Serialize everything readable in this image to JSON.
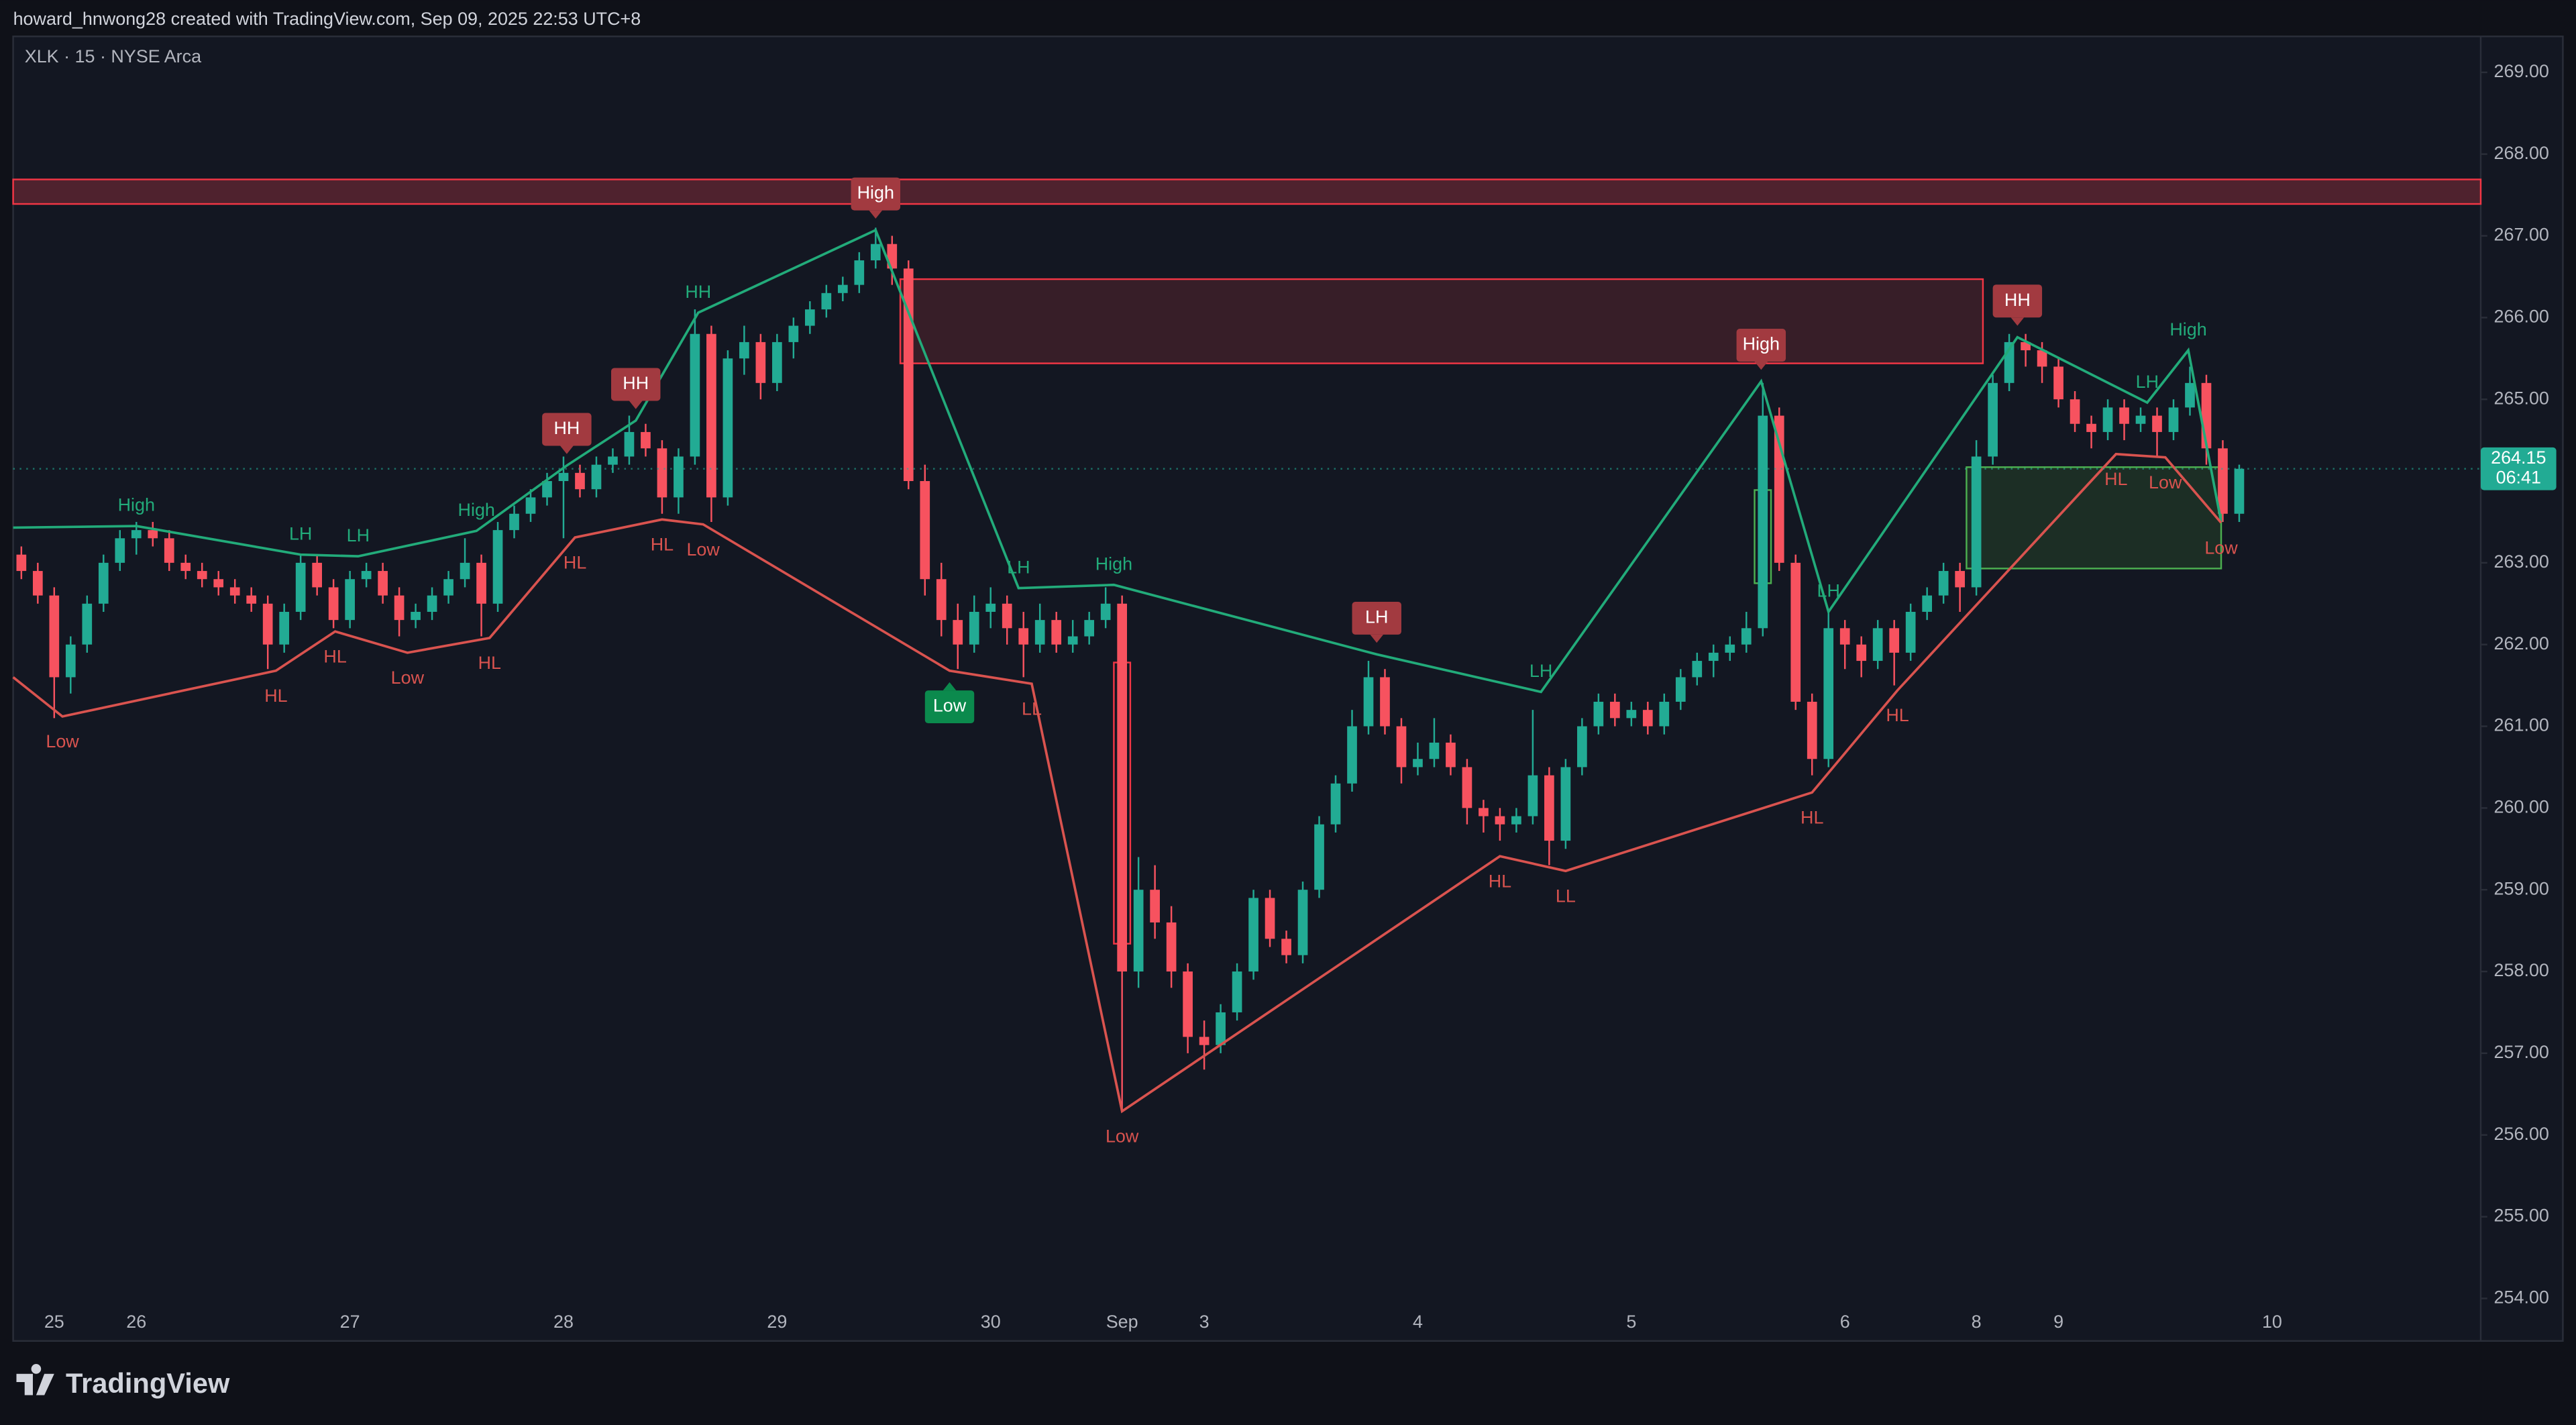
{
  "header": {
    "credit": "howard_hnwong28 created with TradingView.com, Sep 09, 2025 22:53 UTC+8"
  },
  "footer": {
    "brand": "TradingView"
  },
  "chart_data": {
    "type": "candlestick",
    "title": "XLK · 15 · NYSE Arca",
    "up_color": "#22ab94",
    "down_color": "#f7525f",
    "ylim": [
      253.5,
      269.44
    ],
    "yticks": [
      {
        "value": 254,
        "label": "254.00"
      },
      {
        "value": 255,
        "label": "255.00"
      },
      {
        "value": 256,
        "label": "256.00"
      },
      {
        "value": 257,
        "label": "257.00"
      },
      {
        "value": 258,
        "label": "258.00"
      },
      {
        "value": 259,
        "label": "259.00"
      },
      {
        "value": 260,
        "label": "260.00"
      },
      {
        "value": 261,
        "label": "261.00"
      },
      {
        "value": 262,
        "label": "262.00"
      },
      {
        "value": 263,
        "label": "263.00"
      },
      {
        "value": 264,
        "label": "264.00"
      },
      {
        "value": 265,
        "label": "265.00"
      },
      {
        "value": 266,
        "label": "266.00"
      },
      {
        "value": 267,
        "label": "267.00"
      },
      {
        "value": 268,
        "label": "268.00"
      },
      {
        "value": 269,
        "label": "269.00"
      }
    ],
    "grid": false,
    "last_price": 264.15,
    "countdown": "06:41",
    "categories": [
      null,
      null,
      "25",
      null,
      null,
      null,
      null,
      "26",
      null,
      null,
      null,
      null,
      null,
      null,
      null,
      null,
      null,
      null,
      null,
      null,
      "27",
      null,
      null,
      null,
      null,
      null,
      null,
      null,
      null,
      null,
      null,
      null,
      null,
      "28",
      null,
      null,
      null,
      null,
      null,
      null,
      null,
      null,
      null,
      null,
      null,
      null,
      "29",
      null,
      null,
      null,
      null,
      null,
      null,
      null,
      null,
      null,
      null,
      null,
      null,
      "30",
      null,
      null,
      null,
      null,
      null,
      null,
      null,
      "Sep",
      null,
      null,
      null,
      null,
      "3",
      null,
      null,
      null,
      null,
      null,
      null,
      null,
      null,
      null,
      null,
      null,
      null,
      "4",
      null,
      null,
      null,
      null,
      null,
      null,
      null,
      null,
      null,
      null,
      null,
      null,
      "5",
      null,
      null,
      null,
      null,
      null,
      null,
      null,
      null,
      null,
      null,
      null,
      null,
      "6",
      null,
      null,
      null,
      null,
      null,
      null,
      null,
      "8",
      null,
      null,
      null,
      null,
      "9",
      null,
      null,
      null,
      null,
      null,
      null,
      null,
      null,
      null,
      null,
      null,
      null,
      "10"
    ],
    "ohlc": [
      [
        263.1,
        263.2,
        262.8,
        262.9
      ],
      [
        262.9,
        263.0,
        262.5,
        262.6
      ],
      [
        262.6,
        262.7,
        261.1,
        261.6
      ],
      [
        261.6,
        262.1,
        261.4,
        262.0
      ],
      [
        262.0,
        262.6,
        261.9,
        262.5
      ],
      [
        262.5,
        263.1,
        262.4,
        263.0
      ],
      [
        263.0,
        263.4,
        262.9,
        263.3
      ],
      [
        263.3,
        263.5,
        263.1,
        263.4
      ],
      [
        263.4,
        263.5,
        263.2,
        263.3
      ],
      [
        263.3,
        263.4,
        262.9,
        263.0
      ],
      [
        263.0,
        263.1,
        262.8,
        262.9
      ],
      [
        262.9,
        263.0,
        262.7,
        262.8
      ],
      [
        262.8,
        262.9,
        262.6,
        262.7
      ],
      [
        262.7,
        262.8,
        262.5,
        262.6
      ],
      [
        262.6,
        262.7,
        262.4,
        262.5
      ],
      [
        262.5,
        262.6,
        261.7,
        262.0
      ],
      [
        262.0,
        262.5,
        261.9,
        262.4
      ],
      [
        262.4,
        263.1,
        262.3,
        263.0
      ],
      [
        263.0,
        263.1,
        262.6,
        262.7
      ],
      [
        262.7,
        262.8,
        262.2,
        262.3
      ],
      [
        262.3,
        262.9,
        262.2,
        262.8
      ],
      [
        262.8,
        263.0,
        262.7,
        262.9
      ],
      [
        262.9,
        263.0,
        262.5,
        262.6
      ],
      [
        262.6,
        262.7,
        262.1,
        262.3
      ],
      [
        262.3,
        262.5,
        262.2,
        262.4
      ],
      [
        262.4,
        262.7,
        262.3,
        262.6
      ],
      [
        262.6,
        262.9,
        262.5,
        262.8
      ],
      [
        262.8,
        263.3,
        262.7,
        263.0
      ],
      [
        263.0,
        263.1,
        262.1,
        262.5
      ],
      [
        262.5,
        263.5,
        262.4,
        263.4
      ],
      [
        263.4,
        263.7,
        263.3,
        263.6
      ],
      [
        263.6,
        263.9,
        263.5,
        263.8
      ],
      [
        263.8,
        264.1,
        263.7,
        264.0
      ],
      [
        264.0,
        264.3,
        263.3,
        264.1
      ],
      [
        264.1,
        264.2,
        263.8,
        263.9
      ],
      [
        263.9,
        264.3,
        263.8,
        264.2
      ],
      [
        264.2,
        264.4,
        264.1,
        264.3
      ],
      [
        264.3,
        264.8,
        264.2,
        264.6
      ],
      [
        264.6,
        264.7,
        264.3,
        264.4
      ],
      [
        264.4,
        264.5,
        263.6,
        263.8
      ],
      [
        263.8,
        264.4,
        263.6,
        264.3
      ],
      [
        264.3,
        266.1,
        264.2,
        265.8
      ],
      [
        265.8,
        265.9,
        263.5,
        263.8
      ],
      [
        263.8,
        265.6,
        263.7,
        265.5
      ],
      [
        265.5,
        265.9,
        265.3,
        265.7
      ],
      [
        265.7,
        265.8,
        265.0,
        265.2
      ],
      [
        265.2,
        265.8,
        265.1,
        265.7
      ],
      [
        265.7,
        266.0,
        265.5,
        265.9
      ],
      [
        265.9,
        266.2,
        265.8,
        266.1
      ],
      [
        266.1,
        266.4,
        266.0,
        266.3
      ],
      [
        266.3,
        266.5,
        266.2,
        266.4
      ],
      [
        266.4,
        266.8,
        266.3,
        266.7
      ],
      [
        266.7,
        267.1,
        266.6,
        266.9
      ],
      [
        266.9,
        267.0,
        266.4,
        266.6
      ],
      [
        266.6,
        266.7,
        263.9,
        264.0
      ],
      [
        264.0,
        264.2,
        262.6,
        262.8
      ],
      [
        262.8,
        263.0,
        262.1,
        262.3
      ],
      [
        262.3,
        262.5,
        261.7,
        262.0
      ],
      [
        262.0,
        262.6,
        261.9,
        262.4
      ],
      [
        262.4,
        262.7,
        262.2,
        262.5
      ],
      [
        262.5,
        262.6,
        262.0,
        262.2
      ],
      [
        262.2,
        262.4,
        261.6,
        262.0
      ],
      [
        262.0,
        262.5,
        261.9,
        262.3
      ],
      [
        262.3,
        262.4,
        261.9,
        262.0
      ],
      [
        262.0,
        262.3,
        261.9,
        262.1
      ],
      [
        262.1,
        262.4,
        262.0,
        262.3
      ],
      [
        262.3,
        262.7,
        262.2,
        262.5
      ],
      [
        262.5,
        262.6,
        256.3,
        258.0
      ],
      [
        258.0,
        259.4,
        257.8,
        259.0
      ],
      [
        259.0,
        259.3,
        258.4,
        258.6
      ],
      [
        258.6,
        258.8,
        257.8,
        258.0
      ],
      [
        258.0,
        258.1,
        257.0,
        257.2
      ],
      [
        257.2,
        257.4,
        256.8,
        257.1
      ],
      [
        257.1,
        257.6,
        257.0,
        257.5
      ],
      [
        257.5,
        258.1,
        257.4,
        258.0
      ],
      [
        258.0,
        259.0,
        257.9,
        258.9
      ],
      [
        258.9,
        259.0,
        258.3,
        258.4
      ],
      [
        258.4,
        258.5,
        258.1,
        258.2
      ],
      [
        258.2,
        259.1,
        258.1,
        259.0
      ],
      [
        259.0,
        259.9,
        258.9,
        259.8
      ],
      [
        259.8,
        260.4,
        259.7,
        260.3
      ],
      [
        260.3,
        261.2,
        260.2,
        261.0
      ],
      [
        261.0,
        261.8,
        260.9,
        261.6
      ],
      [
        261.6,
        261.7,
        260.9,
        261.0
      ],
      [
        261.0,
        261.1,
        260.3,
        260.5
      ],
      [
        260.5,
        260.8,
        260.4,
        260.6
      ],
      [
        260.6,
        261.1,
        260.5,
        260.8
      ],
      [
        260.8,
        260.9,
        260.4,
        260.5
      ],
      [
        260.5,
        260.6,
        259.8,
        260.0
      ],
      [
        260.0,
        260.1,
        259.7,
        259.9
      ],
      [
        259.9,
        260.0,
        259.6,
        259.8
      ],
      [
        259.8,
        260.0,
        259.7,
        259.9
      ],
      [
        259.9,
        261.2,
        259.8,
        260.4
      ],
      [
        260.4,
        260.5,
        259.3,
        259.6
      ],
      [
        259.6,
        260.6,
        259.5,
        260.5
      ],
      [
        260.5,
        261.1,
        260.4,
        261.0
      ],
      [
        261.0,
        261.4,
        260.9,
        261.3
      ],
      [
        261.3,
        261.4,
        261.0,
        261.1
      ],
      [
        261.1,
        261.3,
        261.0,
        261.2
      ],
      [
        261.2,
        261.3,
        260.9,
        261.0
      ],
      [
        261.0,
        261.4,
        260.9,
        261.3
      ],
      [
        261.3,
        261.7,
        261.2,
        261.6
      ],
      [
        261.6,
        261.9,
        261.5,
        261.8
      ],
      [
        261.8,
        262.0,
        261.6,
        261.9
      ],
      [
        261.9,
        262.1,
        261.8,
        262.0
      ],
      [
        262.0,
        262.4,
        261.9,
        262.2
      ],
      [
        262.2,
        265.2,
        262.1,
        264.8
      ],
      [
        264.8,
        264.9,
        262.9,
        263.0
      ],
      [
        263.0,
        263.1,
        261.2,
        261.3
      ],
      [
        261.3,
        261.4,
        260.4,
        260.6
      ],
      [
        260.6,
        262.4,
        260.5,
        262.2
      ],
      [
        262.2,
        262.3,
        261.7,
        262.0
      ],
      [
        262.0,
        262.1,
        261.6,
        261.8
      ],
      [
        261.8,
        262.3,
        261.7,
        262.2
      ],
      [
        262.2,
        262.3,
        261.5,
        261.9
      ],
      [
        261.9,
        262.5,
        261.8,
        262.4
      ],
      [
        262.4,
        262.7,
        262.3,
        262.6
      ],
      [
        262.6,
        263.0,
        262.5,
        262.9
      ],
      [
        262.9,
        263.0,
        262.4,
        262.7
      ],
      [
        262.7,
        264.5,
        262.6,
        264.3
      ],
      [
        264.3,
        265.3,
        264.2,
        265.2
      ],
      [
        265.2,
        265.8,
        265.1,
        265.7
      ],
      [
        265.7,
        265.8,
        265.4,
        265.6
      ],
      [
        265.6,
        265.7,
        265.2,
        265.4
      ],
      [
        265.4,
        265.5,
        264.9,
        265.0
      ],
      [
        265.0,
        265.1,
        264.6,
        264.7
      ],
      [
        264.7,
        264.8,
        264.4,
        264.6
      ],
      [
        264.6,
        265.0,
        264.5,
        264.9
      ],
      [
        264.9,
        265.0,
        264.5,
        264.7
      ],
      [
        264.7,
        264.9,
        264.6,
        264.8
      ],
      [
        264.8,
        264.9,
        264.3,
        264.6
      ],
      [
        264.6,
        265.0,
        264.5,
        264.9
      ],
      [
        264.9,
        265.4,
        264.8,
        265.2
      ],
      [
        265.2,
        265.3,
        264.2,
        264.4
      ],
      [
        264.4,
        264.5,
        263.5,
        263.6
      ],
      [
        263.6,
        264.2,
        263.5,
        264.15
      ],
      null,
      null
    ],
    "zones": [
      {
        "start": -0.5,
        "extend_right": true,
        "top": 267.69,
        "bottom": 267.39,
        "color": "#f23645",
        "fill": "#5a2430"
      },
      {
        "start": 53.5,
        "end": 119.4,
        "top": 266.47,
        "bottom": 265.44,
        "color": "#f23645",
        "fill": "#3e2029"
      },
      {
        "start": 118.4,
        "end": 133.9,
        "top": 264.17,
        "bottom": 262.93,
        "color": "#4caf50",
        "fill": "#1f3326"
      },
      {
        "start": 66.5,
        "end": 67.5,
        "top": 261.78,
        "bottom": 258.34,
        "color": "#f23645"
      },
      {
        "start": 105.5,
        "end": 106.5,
        "top": 263.89,
        "bottom": 262.75,
        "color": "#4caf50"
      }
    ],
    "zigzag": {
      "green": {
        "color": "#22ab7a",
        "points": [
          {
            "x": -0.5,
            "y": 263.43
          },
          {
            "x": 7,
            "y": 263.45,
            "label": "High"
          },
          {
            "x": 17,
            "y": 263.1,
            "label": "LH"
          },
          {
            "x": 20.5,
            "y": 263.08,
            "label": "LH"
          },
          {
            "x": 27.7,
            "y": 263.39,
            "label": "High"
          },
          {
            "x": 33.2,
            "y": 264.19,
            "label": "HH",
            "box": "#a23a40"
          },
          {
            "x": 37.4,
            "y": 264.74,
            "label": "HH",
            "box": "#a23a40"
          },
          {
            "x": 41.2,
            "y": 266.06,
            "label": "HH"
          },
          {
            "x": 52,
            "y": 267.07,
            "label": "High",
            "box": "#a23a40"
          },
          {
            "x": 60.7,
            "y": 262.69,
            "label": "LH"
          },
          {
            "x": 66.5,
            "y": 262.73,
            "label": "High"
          },
          {
            "x": 82.5,
            "y": 261.88,
            "label": "LH",
            "box": "#a23a40"
          },
          {
            "x": 92.5,
            "y": 261.42,
            "label": "LH"
          },
          {
            "x": 105.9,
            "y": 265.22,
            "label": "High",
            "box": "#a23a40"
          },
          {
            "x": 110,
            "y": 262.4,
            "label": "LH"
          },
          {
            "x": 121.5,
            "y": 265.76,
            "label": "HH",
            "box": "#a23a40"
          },
          {
            "x": 129.4,
            "y": 264.96,
            "label": "LH"
          },
          {
            "x": 131.9,
            "y": 265.6,
            "label": "High"
          },
          {
            "x": 133.9,
            "y": 263.5
          }
        ]
      },
      "red": {
        "color": "#d9534f",
        "points": [
          {
            "x": -0.5,
            "y": 261.6
          },
          {
            "x": 2.5,
            "y": 261.12,
            "label": "Low"
          },
          {
            "x": 15.5,
            "y": 261.68,
            "label": "HL"
          },
          {
            "x": 19.1,
            "y": 262.16,
            "label": "HL"
          },
          {
            "x": 23.5,
            "y": 261.9,
            "label": "Low"
          },
          {
            "x": 28.5,
            "y": 262.08,
            "label": "HL"
          },
          {
            "x": 33.7,
            "y": 263.31,
            "label": "HL"
          },
          {
            "x": 39,
            "y": 263.53,
            "label": "HL"
          },
          {
            "x": 41.5,
            "y": 263.47,
            "label": "Low"
          },
          {
            "x": 56.5,
            "y": 261.68,
            "label": "Low",
            "box": "#0b8a4d"
          },
          {
            "x": 61.5,
            "y": 261.52,
            "label": "LL"
          },
          {
            "x": 67,
            "y": 256.29,
            "label": "Low"
          },
          {
            "x": 90,
            "y": 259.41,
            "label": "HL"
          },
          {
            "x": 94,
            "y": 259.23,
            "label": "LL"
          },
          {
            "x": 109,
            "y": 260.19,
            "label": "HL"
          },
          {
            "x": 114.2,
            "y": 261.44,
            "label": "HL"
          },
          {
            "x": 127.5,
            "y": 264.33,
            "label": "HL"
          },
          {
            "x": 130.5,
            "y": 264.29,
            "label": "Low"
          },
          {
            "x": 133.9,
            "y": 263.49,
            "label": "Low"
          }
        ]
      }
    }
  }
}
